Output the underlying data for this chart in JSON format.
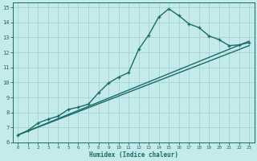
{
  "xlabel": "Humidex (Indice chaleur)",
  "bg_color": "#c5eaea",
  "grid_color": "#a8d5d5",
  "line_color": "#1a6b6b",
  "xlim": [
    -0.5,
    23.5
  ],
  "ylim": [
    6,
    15.3
  ],
  "xticks": [
    0,
    1,
    2,
    3,
    4,
    5,
    6,
    7,
    8,
    9,
    10,
    11,
    12,
    13,
    14,
    15,
    16,
    17,
    18,
    19,
    20,
    21,
    22,
    23
  ],
  "yticks": [
    6,
    7,
    8,
    9,
    10,
    11,
    12,
    13,
    14,
    15
  ],
  "line1_x": [
    0,
    1,
    2,
    3,
    4,
    5,
    6,
    7,
    8,
    9,
    10,
    11,
    12,
    13,
    14,
    15,
    16,
    17,
    18,
    19,
    20,
    21,
    22,
    23
  ],
  "line1_y": [
    6.5,
    6.8,
    7.3,
    7.55,
    7.75,
    8.2,
    8.35,
    8.55,
    9.3,
    9.95,
    10.35,
    10.65,
    12.2,
    13.15,
    14.35,
    14.9,
    14.45,
    13.9,
    13.65,
    13.1,
    12.85,
    12.45,
    12.5,
    12.65
  ],
  "line2_x": [
    0,
    23
  ],
  "line2_y": [
    6.5,
    12.75
  ],
  "line3_x": [
    0,
    23
  ],
  "line3_y": [
    6.5,
    12.45
  ]
}
